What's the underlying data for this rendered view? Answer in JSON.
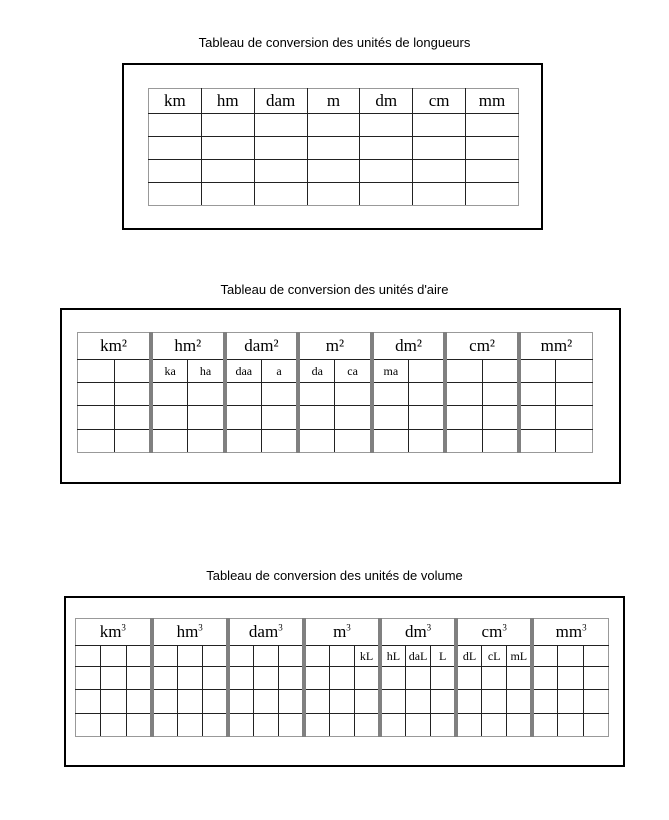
{
  "tables": [
    {
      "title": "Tableau de conversion des unités de longueurs",
      "units": [
        "km",
        "hm",
        "dam",
        "m",
        "dm",
        "cm",
        "mm"
      ],
      "exponent": "",
      "subcols": 1,
      "sub_labels": [],
      "empty_rows": 4
    },
    {
      "title": "Tableau de conversion des unités d'aire",
      "units": [
        "km²",
        "hm²",
        "dam²",
        "m²",
        "dm²",
        "cm²",
        "mm²"
      ],
      "exponent": "",
      "subcols": 2,
      "sub_labels": [
        "",
        "",
        "ka",
        "ha",
        "daa",
        "a",
        "da",
        "ca",
        "ma",
        "",
        "",
        "",
        "",
        ""
      ],
      "empty_rows": 3
    },
    {
      "title": "Tableau de conversion des unités de volume",
      "units": [
        "km",
        "hm",
        "dam",
        "m",
        "dm",
        "cm",
        "mm"
      ],
      "exponent": "3",
      "subcols": 3,
      "sub_labels": [
        "",
        "",
        "",
        "",
        "",
        "",
        "",
        "",
        "",
        "",
        "",
        "kL",
        "hL",
        "daL",
        "L",
        "dL",
        "cL",
        "mL",
        "",
        "",
        ""
      ],
      "empty_rows": 3
    }
  ]
}
